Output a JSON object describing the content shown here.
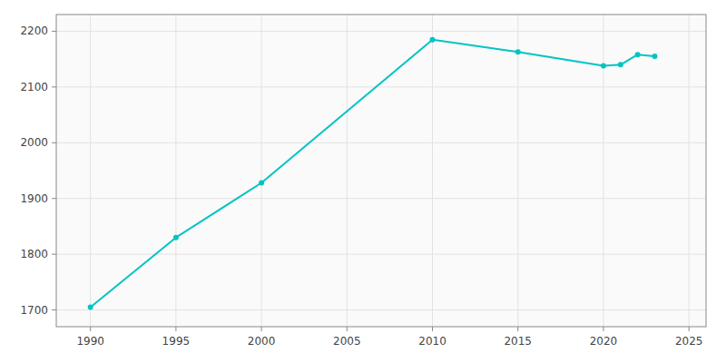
{
  "chart_data": {
    "type": "line",
    "x": [
      1990,
      1995,
      2000,
      2010,
      2015,
      2020,
      2021,
      2022,
      2023
    ],
    "values": [
      1705,
      1830,
      1928,
      2185,
      2163,
      2138,
      2140,
      2158,
      2155
    ],
    "color": "#00C4C4",
    "marker": "circle",
    "xlim": [
      1988,
      2026
    ],
    "ylim": [
      1670,
      2230
    ],
    "xticks": [
      1990,
      1995,
      2000,
      2005,
      2010,
      2015,
      2020,
      2025
    ],
    "yticks": [
      1700,
      1800,
      1900,
      2000,
      2100,
      2200
    ],
    "grid": true
  }
}
